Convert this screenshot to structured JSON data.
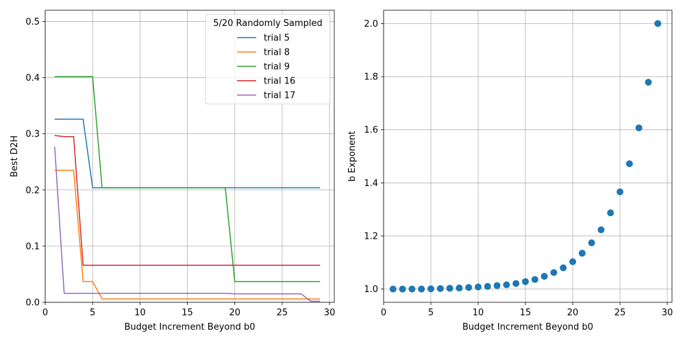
{
  "chart_data": [
    {
      "type": "line",
      "title": "",
      "xlabel": "Budget Increment Beyond b0",
      "ylabel": "Best D2H",
      "xlim": [
        0,
        30.5
      ],
      "ylim": [
        0,
        0.52
      ],
      "xticks": [
        0,
        5,
        10,
        15,
        20,
        25,
        30
      ],
      "yticks": [
        0.0,
        0.1,
        0.2,
        0.3,
        0.4,
        0.5
      ],
      "ytick_labels": [
        "0.0",
        "0.1",
        "0.2",
        "0.3",
        "0.4",
        "0.5"
      ],
      "grid": true,
      "legend": {
        "title": "5/20 Randomly Sampled",
        "position": "top-right"
      },
      "series": [
        {
          "name": "trial 5",
          "color": "#1f77b4",
          "points": [
            [
              1,
              0.326
            ],
            [
              4,
              0.326
            ],
            [
              5,
              0.204
            ],
            [
              29,
              0.204
            ]
          ]
        },
        {
          "name": "trial 8",
          "color": "#ff7f0e",
          "points": [
            [
              1,
              0.235
            ],
            [
              3,
              0.235
            ],
            [
              4,
              0.037
            ],
            [
              5,
              0.037
            ],
            [
              6,
              0.006
            ],
            [
              29,
              0.006
            ]
          ]
        },
        {
          "name": "trial 9",
          "color": "#2ca02c",
          "points": [
            [
              1,
              0.402
            ],
            [
              5,
              0.402
            ],
            [
              6,
              0.204
            ],
            [
              19,
              0.204
            ],
            [
              20,
              0.037
            ],
            [
              29,
              0.037
            ]
          ]
        },
        {
          "name": "trial 16",
          "color": "#d62728",
          "points": [
            [
              1,
              0.297
            ],
            [
              2,
              0.295
            ],
            [
              3,
              0.295
            ],
            [
              4,
              0.066
            ],
            [
              29,
              0.066
            ]
          ]
        },
        {
          "name": "trial 17",
          "color": "#9467bd",
          "points": [
            [
              1,
              0.277
            ],
            [
              2,
              0.016
            ],
            [
              18,
              0.016
            ],
            [
              19,
              0.016
            ],
            [
              20,
              0.015
            ],
            [
              27,
              0.015
            ],
            [
              28,
              0.002
            ],
            [
              29,
              0.002
            ]
          ]
        }
      ]
    },
    {
      "type": "scatter",
      "title": "",
      "xlabel": "Budget Increment Beyond b0",
      "ylabel": "b Exponent",
      "xlim": [
        0,
        30.5
      ],
      "ylim": [
        0.95,
        2.05
      ],
      "xticks": [
        0,
        5,
        10,
        15,
        20,
        25,
        30
      ],
      "yticks": [
        1.0,
        1.2,
        1.4,
        1.6,
        1.8,
        2.0
      ],
      "ytick_labels": [
        "1.0",
        "1.2",
        "1.4",
        "1.6",
        "1.8",
        "2.0"
      ],
      "grid": true,
      "color": "#1f77b4",
      "x": [
        1,
        2,
        3,
        4,
        5,
        6,
        7,
        8,
        9,
        10,
        11,
        12,
        13,
        14,
        15,
        16,
        17,
        18,
        19,
        20,
        21,
        22,
        23,
        24,
        25,
        26,
        27,
        28,
        29
      ],
      "y": [
        1.0,
        1.0,
        1.0,
        1.0,
        1.001,
        1.002,
        1.003,
        1.004,
        1.006,
        1.008,
        1.01,
        1.013,
        1.016,
        1.021,
        1.028,
        1.036,
        1.048,
        1.062,
        1.08,
        1.103,
        1.135,
        1.174,
        1.223,
        1.287,
        1.366,
        1.472,
        1.607,
        1.779,
        2.0
      ]
    }
  ]
}
